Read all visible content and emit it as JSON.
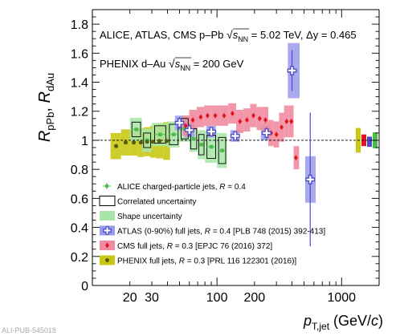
{
  "footer_id": "ALI-PUB-545018",
  "chart_data": {
    "type": "scatter",
    "x_scale": "log",
    "xlim": [
      10,
      2000
    ],
    "ylim": [
      0,
      1.9
    ],
    "xlabel_main": "p",
    "xlabel_sub": "T,jet",
    "xlabel_unit_pre": "(GeV/",
    "xlabel_unit_c": "c",
    "xlabel_unit_post": ")",
    "ylabel": {
      "r1": "R",
      "s1": "pPb",
      "sep": ", ",
      "r2": "R",
      "s2": "dAu"
    },
    "x_ticks": [
      {
        "value": 20,
        "label": "20"
      },
      {
        "value": 30,
        "label": "30"
      },
      {
        "value": 100,
        "label": "100"
      },
      {
        "value": 200,
        "label": "200"
      },
      {
        "value": 1000,
        "label": "1000"
      }
    ],
    "y_ticks": [
      {
        "value": 0,
        "label": "0"
      },
      {
        "value": 0.2,
        "label": "0.2"
      },
      {
        "value": 0.4,
        "label": "0.4"
      },
      {
        "value": 0.6,
        "label": "0.6"
      },
      {
        "value": 0.8,
        "label": "0.8"
      },
      {
        "value": 1.0,
        "label": "1"
      },
      {
        "value": 1.2,
        "label": "1.2"
      },
      {
        "value": 1.4,
        "label": "1.4"
      },
      {
        "value": 1.6,
        "label": "1.6"
      },
      {
        "value": 1.8,
        "label": "1.8"
      }
    ],
    "reference_line": 1.0,
    "header": {
      "line1_pre": "ALICE, ATLAS, CMS p–Pb",
      "line1_s": "s",
      "line1_nn": "NN",
      "line1_post": " = 5.02 TeV, Δy = 0.465",
      "line2_pre": "PHENIX  d–Au",
      "line2_s": "s",
      "line2_nn": "NN",
      "line2_post": " = 200 GeV"
    },
    "series": [
      {
        "id": "phenix",
        "marker": "circle",
        "color": "#5a5a10",
        "box_color": "#c8c814",
        "points": [
          {
            "x": 15.5,
            "y": 0.96,
            "xlo": 14,
            "xhi": 17,
            "box": 0.09
          },
          {
            "x": 18.5,
            "y": 0.985,
            "xlo": 17,
            "xhi": 20,
            "box": 0.09
          },
          {
            "x": 21.5,
            "y": 0.985,
            "xlo": 20,
            "xhi": 23,
            "box": 0.09
          },
          {
            "x": 24.5,
            "y": 0.985,
            "xlo": 23,
            "xhi": 26,
            "box": 0.1
          },
          {
            "x": 27.5,
            "y": 0.99,
            "xlo": 26,
            "xhi": 29,
            "box": 0.1
          },
          {
            "x": 30.5,
            "y": 0.99,
            "xlo": 29,
            "xhi": 32.5,
            "box": 0.11
          },
          {
            "x": 34.5,
            "y": 0.995,
            "xlo": 32.5,
            "xhi": 37,
            "box": 0.12
          },
          {
            "x": 39.5,
            "y": 0.995,
            "xlo": 37,
            "xhi": 42,
            "box": 0.13
          }
        ]
      },
      {
        "id": "alice",
        "marker": "square",
        "color": "#4cbb4c",
        "box_color": "#a8e6a8",
        "points": [
          {
            "x": 22.5,
            "y": 1.075,
            "xlo": 20,
            "xhi": 25,
            "box": 0.08,
            "corr": 0.05
          },
          {
            "x": 27.5,
            "y": 1.0,
            "xlo": 25,
            "xhi": 30,
            "box": 0.08,
            "corr": 0.05
          },
          {
            "x": 35,
            "y": 1.04,
            "xlo": 30,
            "xhi": 40,
            "box": 0.08,
            "corr": 0.06
          },
          {
            "x": 45,
            "y": 1.04,
            "xlo": 40,
            "xhi": 50,
            "box": 0.09,
            "corr": 0.07
          },
          {
            "x": 55,
            "y": 1.08,
            "xlo": 50,
            "xhi": 60,
            "box": 0.09,
            "corr": 0.07
          },
          {
            "x": 65,
            "y": 1.01,
            "xlo": 60,
            "xhi": 70,
            "box": 0.09,
            "corr": 0.07
          },
          {
            "x": 75,
            "y": 0.97,
            "xlo": 70,
            "xhi": 80,
            "box": 0.1,
            "corr": 0.07
          },
          {
            "x": 90,
            "y": 0.955,
            "xlo": 80,
            "xhi": 100,
            "box": 0.11,
            "corr": 0.08
          },
          {
            "x": 110,
            "y": 0.93,
            "xlo": 100,
            "xhi": 120,
            "box": 0.12,
            "corr": 0.09
          }
        ]
      },
      {
        "id": "cms",
        "marker": "diamond",
        "color": "#e0141e",
        "box_color": "#f08ca0",
        "points": [
          {
            "x": 56,
            "y": 1.1,
            "box": 0.07
          },
          {
            "x": 64,
            "y": 1.14,
            "box": 0.07
          },
          {
            "x": 74,
            "y": 1.16,
            "box": 0.07
          },
          {
            "x": 84,
            "y": 1.17,
            "box": 0.07
          },
          {
            "x": 97,
            "y": 1.17,
            "box": 0.07
          },
          {
            "x": 114,
            "y": 1.17,
            "box": 0.07
          },
          {
            "x": 133,
            "y": 1.185,
            "box": 0.07
          },
          {
            "x": 153,
            "y": 1.13,
            "box": 0.08
          },
          {
            "x": 174,
            "y": 1.14,
            "box": 0.08
          },
          {
            "x": 196,
            "y": 1.17,
            "box": 0.08
          },
          {
            "x": 220,
            "y": 1.15,
            "box": 0.08
          },
          {
            "x": 245,
            "y": 1.14,
            "box": 0.09
          },
          {
            "x": 272,
            "y": 1.05,
            "box": 0.09
          },
          {
            "x": 300,
            "y": 1.04,
            "box": 0.09
          },
          {
            "x": 330,
            "y": 1.09,
            "box": 0.1
          },
          {
            "x": 362,
            "y": 1.13,
            "box": 0.11
          },
          {
            "x": 395,
            "y": 1.13,
            "box": 0.11
          },
          {
            "x": 430,
            "y": 0.88,
            "box": 0.08
          }
        ]
      },
      {
        "id": "atlas",
        "marker": "cross-open",
        "color": "#4b4bc8",
        "box_color": "#9a9aea",
        "points": [
          {
            "x": 50,
            "y": 1.12,
            "xlo": 46,
            "xhi": 55,
            "box": 0.05,
            "err": 0.04
          },
          {
            "x": 60,
            "y": 1.07,
            "xlo": 55,
            "xhi": 66,
            "box": 0.05,
            "err": 0.04
          },
          {
            "x": 90,
            "y": 1.06,
            "xlo": 82,
            "xhi": 98,
            "box": 0.04,
            "err": 0.03
          },
          {
            "x": 140,
            "y": 1.03,
            "xlo": 128,
            "xhi": 152,
            "box": 0.04,
            "err": 0.03
          },
          {
            "x": 250,
            "y": 1.05,
            "xlo": 225,
            "xhi": 270,
            "box": 0.05,
            "err": 0.04
          },
          {
            "x": 400,
            "y": 1.48,
            "xlo": 370,
            "xhi": 460,
            "box": 0.19,
            "err": 0.14
          },
          {
            "x": 560,
            "y": 0.73,
            "xlo": 510,
            "xhi": 620,
            "box": 0.16,
            "err": 0.46
          }
        ]
      }
    ],
    "normalization_boxes": [
      {
        "color": "#c8c814",
        "center": 1.0,
        "half": 0.085
      },
      {
        "color": "#e0141e",
        "center": 1.0,
        "half": 0.04
      },
      {
        "color": "#4b4bc8",
        "center": 0.99,
        "half": 0.035
      },
      {
        "color": "#4cbb4c",
        "center": 1.0,
        "half": 0.055
      }
    ],
    "legend": [
      {
        "key": "alice-points",
        "style": "point",
        "color": "#4cbb4c",
        "text": "ALICE charged-particle jets,  ",
        "r_text": "R",
        "post": " = 0.4"
      },
      {
        "key": "correlated",
        "style": "open-box",
        "color": "#000000",
        "text": "Correlated uncertainty",
        "r_text": "",
        "post": ""
      },
      {
        "key": "shape",
        "style": "filled-box",
        "color": "#a8e6a8",
        "text": "Shape uncertainty",
        "r_text": "",
        "post": ""
      },
      {
        "key": "atlas",
        "style": "box-marker",
        "color": "#9a9aea",
        "marker_color": "#4b4bc8",
        "marker": "cross-open",
        "text": "ATLAS (0-90%) full jets,  ",
        "r_text": "R",
        "post": " = 0.4  [PLB 748 (2015) 392-413]"
      },
      {
        "key": "cms",
        "style": "box-marker",
        "color": "#f08ca0",
        "marker_color": "#e0141e",
        "marker": "diamond",
        "text": "CMS full jets,  ",
        "r_text": "R",
        "post": " = 0.3  [EPJC 76 (2016) 372]"
      },
      {
        "key": "phenix",
        "style": "box-marker",
        "color": "#c8c814",
        "marker_color": "#5a5a10",
        "marker": "circle",
        "text": "PHENIX full jets,  ",
        "r_text": "R",
        "post": " = 0.3  [PRL 116 122301 (2016)]"
      }
    ]
  }
}
